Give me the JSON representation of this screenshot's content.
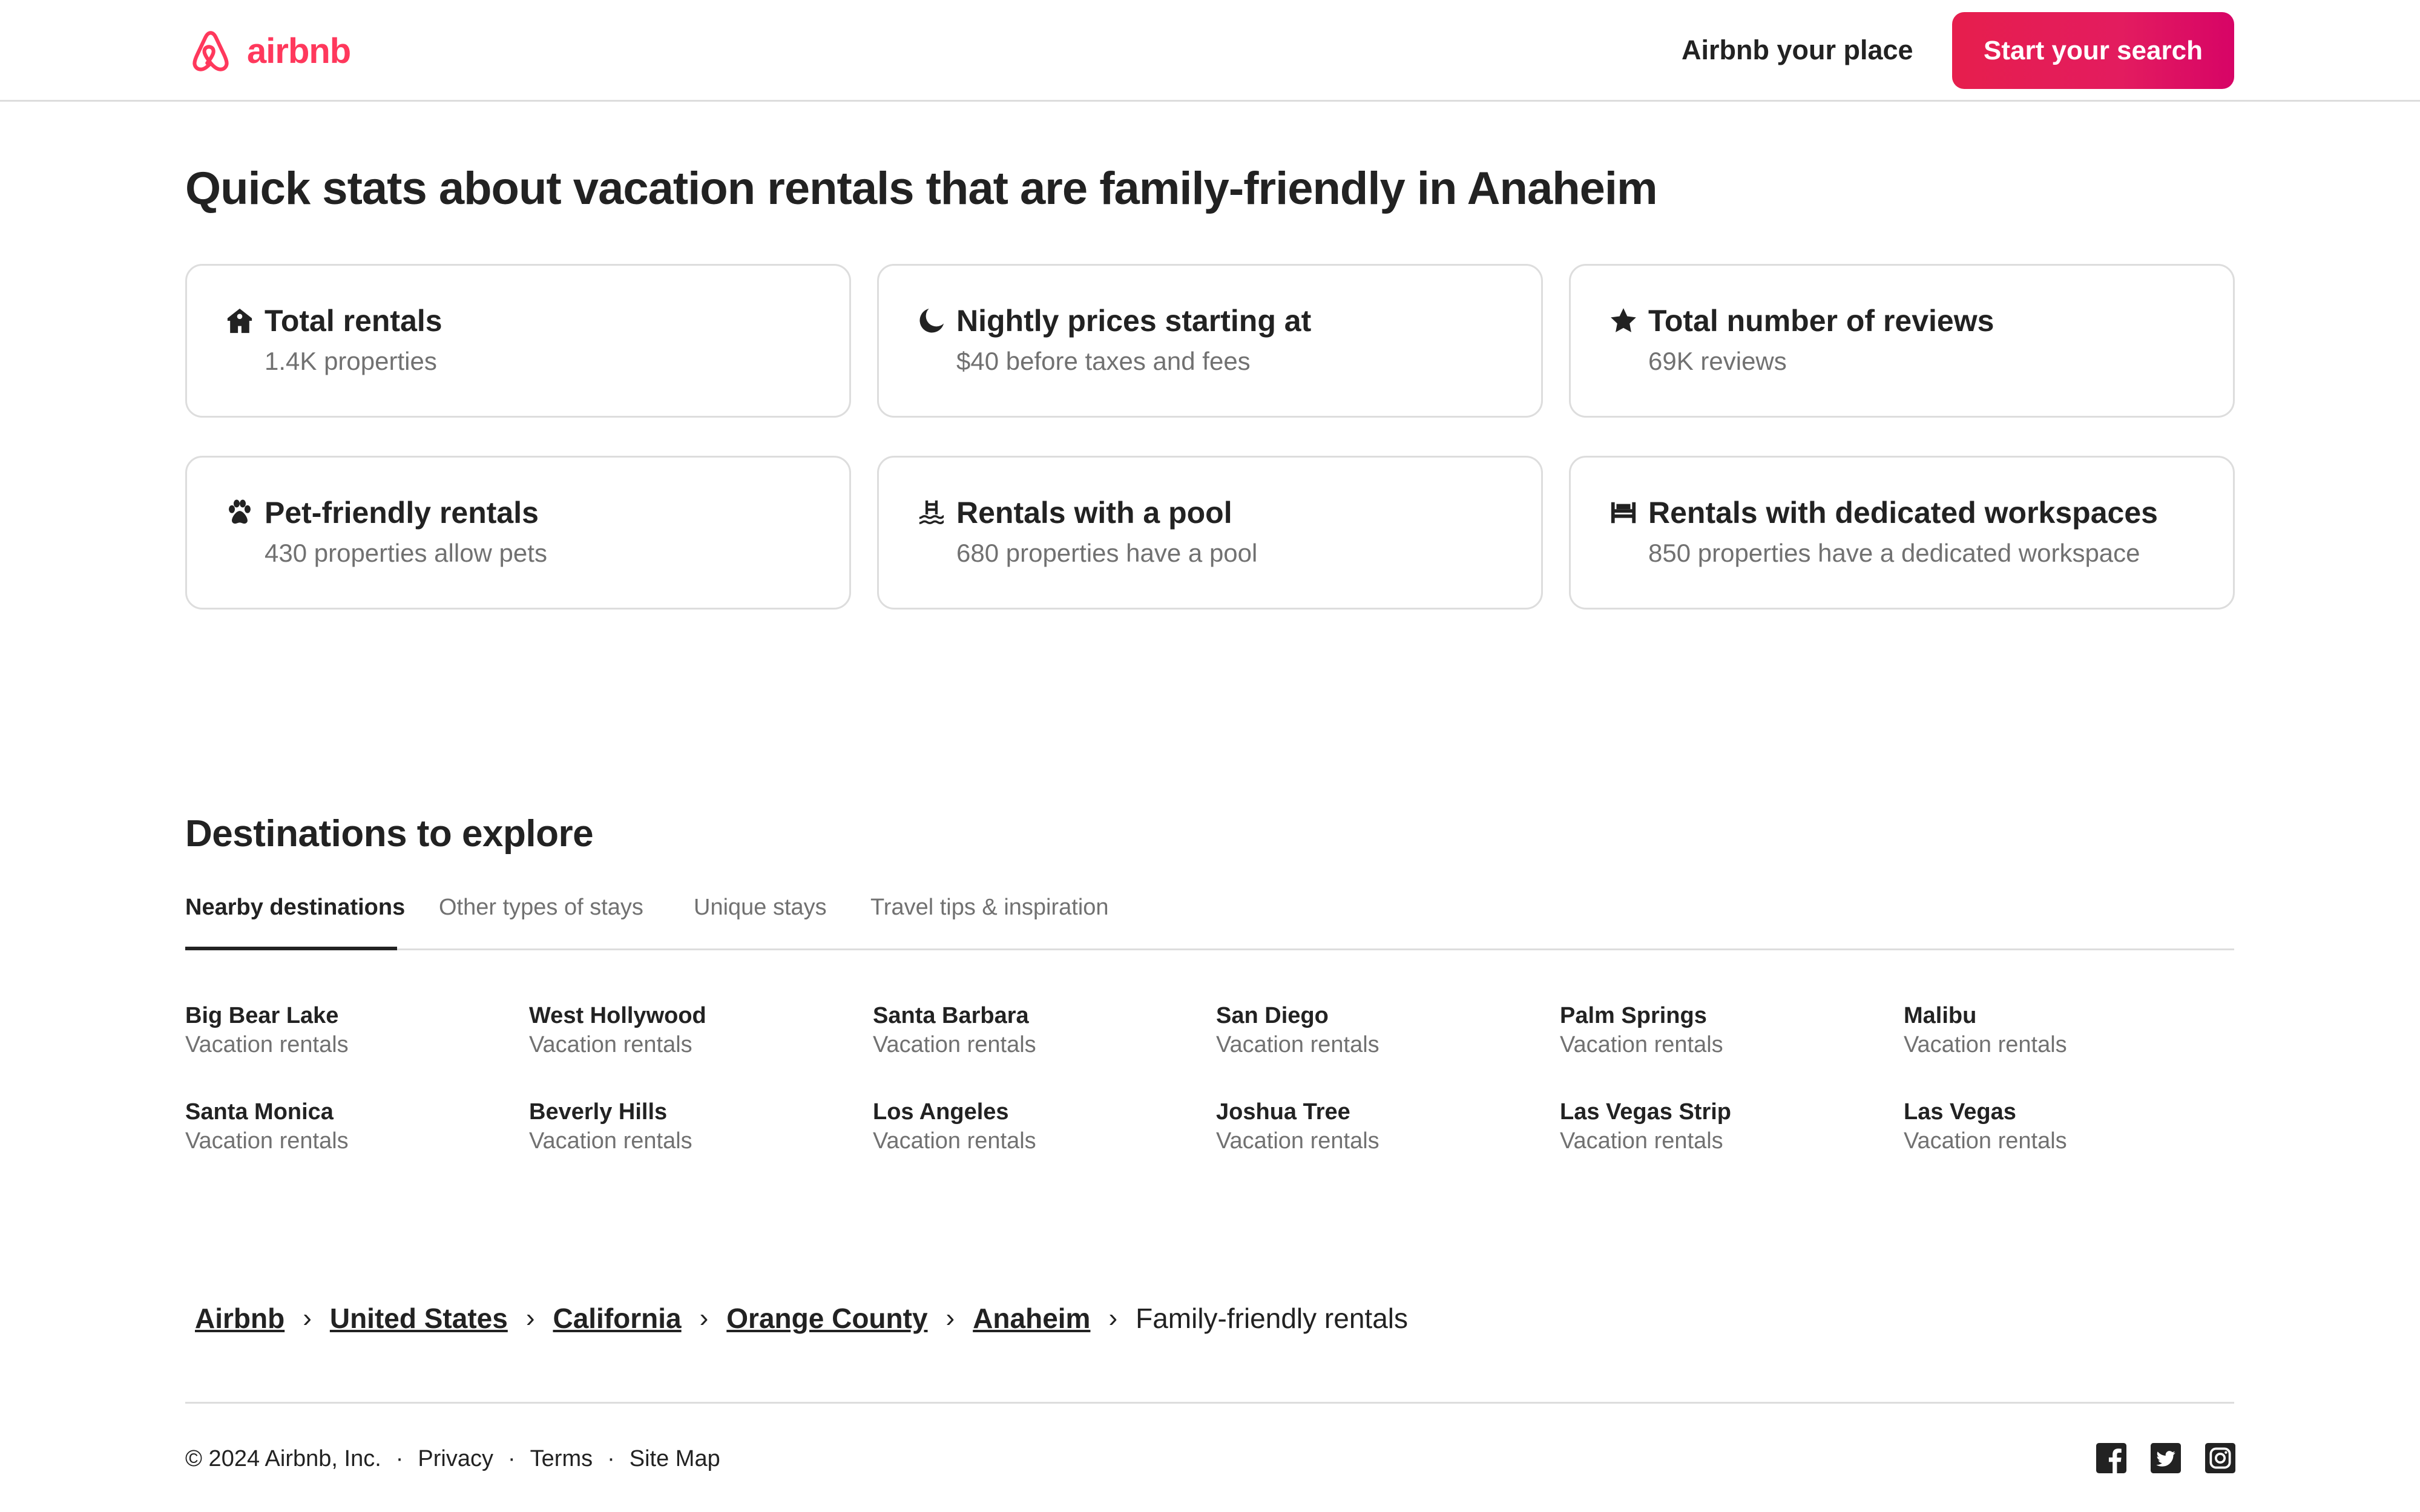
{
  "brand": {
    "name": "airbnb",
    "color": "#ff385c",
    "logo_icon": "airbnb-belo-icon"
  },
  "header": {
    "host_link": "Airbnb your place",
    "search_button": "Start your search"
  },
  "stats": {
    "title": "Quick stats about vacation rentals that are family-friendly in Anaheim",
    "cards": [
      {
        "icon": "house-icon",
        "title": "Total rentals",
        "subtitle": "1.4K properties"
      },
      {
        "icon": "moon-icon",
        "title": "Nightly prices starting at",
        "subtitle": "$40 before taxes and fees"
      },
      {
        "icon": "star-icon",
        "title": "Total number of reviews",
        "subtitle": "69K reviews"
      },
      {
        "icon": "paw-icon",
        "title": "Pet-friendly rentals",
        "subtitle": "430 properties allow pets"
      },
      {
        "icon": "pool-icon",
        "title": "Rentals with a pool",
        "subtitle": "680 properties have a pool"
      },
      {
        "icon": "workspace-icon",
        "title": "Rentals with dedicated workspaces",
        "subtitle": "850 properties have a dedicated workspace"
      }
    ]
  },
  "destinations": {
    "title": "Destinations to explore",
    "tabs": [
      {
        "label": "Nearby destinations",
        "active": true
      },
      {
        "label": "Other types of stays",
        "active": false
      },
      {
        "label": "Unique stays",
        "active": false
      },
      {
        "label": "Travel tips & inspiration",
        "active": false
      }
    ],
    "items": [
      {
        "name": "Big Bear Lake",
        "type": "Vacation rentals"
      },
      {
        "name": "West Hollywood",
        "type": "Vacation rentals"
      },
      {
        "name": "Santa Barbara",
        "type": "Vacation rentals"
      },
      {
        "name": "San Diego",
        "type": "Vacation rentals"
      },
      {
        "name": "Palm Springs",
        "type": "Vacation rentals"
      },
      {
        "name": "Malibu",
        "type": "Vacation rentals"
      },
      {
        "name": "Santa Monica",
        "type": "Vacation rentals"
      },
      {
        "name": "Beverly Hills",
        "type": "Vacation rentals"
      },
      {
        "name": "Los Angeles",
        "type": "Vacation rentals"
      },
      {
        "name": "Joshua Tree",
        "type": "Vacation rentals"
      },
      {
        "name": "Las Vegas Strip",
        "type": "Vacation rentals"
      },
      {
        "name": "Las Vegas",
        "type": "Vacation rentals"
      }
    ]
  },
  "breadcrumb": {
    "items": [
      "Airbnb",
      "United States",
      "California",
      "Orange County",
      "Anaheim"
    ],
    "current": "Family-friendly rentals",
    "separator": "›"
  },
  "footer": {
    "copyright": "© 2024 Airbnb, Inc.",
    "links": [
      "Privacy",
      "Terms",
      "Site Map"
    ],
    "separator": "·",
    "social_icons": [
      "facebook-icon",
      "twitter-icon",
      "instagram-icon"
    ]
  }
}
